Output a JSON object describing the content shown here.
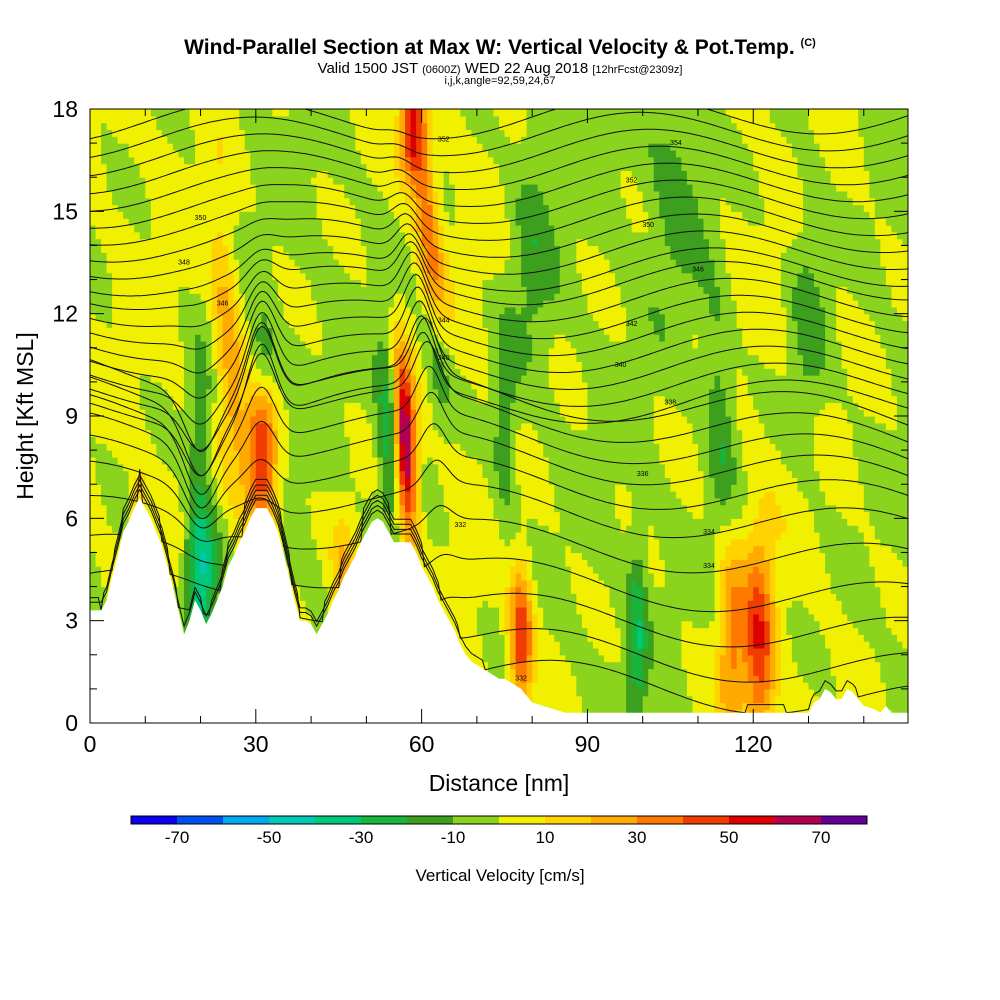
{
  "header": {
    "title": "Wind-Parallel Section at Max W: Vertical Velocity & Pot.Temp.",
    "title_mark": "(C)",
    "valid_prefix": "Valid 1500 JST",
    "valid_utc": "(0600Z)",
    "valid_date": "WED 22 Aug 2018",
    "forecast": "[12hrFcst@2309z]",
    "indices": "i,j,k,angle=92,59,24,67"
  },
  "chart_data": {
    "type": "heatmap",
    "xlabel": "Distance [nm]",
    "ylabel": "Height [Kft MSL]",
    "xlim": [
      0,
      148
    ],
    "ylim": [
      0,
      18
    ],
    "x_ticks": [
      "0",
      "30",
      "60",
      "90",
      "120"
    ],
    "y_ticks": [
      "0",
      "3",
      "6",
      "9",
      "12",
      "15",
      "18"
    ],
    "colorbar": {
      "label": "Vertical Velocity [cm/s]",
      "tick_labels": [
        "-70",
        "-50",
        "-30",
        "-10",
        "10",
        "30",
        "50",
        "70"
      ],
      "bins": [
        -80,
        -70,
        -60,
        -50,
        -40,
        -30,
        -20,
        -10,
        0,
        10,
        20,
        30,
        40,
        50,
        60,
        70,
        80
      ],
      "colors": [
        "#0a00f0",
        "#0050f0",
        "#00a8f0",
        "#00c8b4",
        "#00c87a",
        "#18b43c",
        "#3ca01e",
        "#8ad41e",
        "#f0f000",
        "#ffd200",
        "#ffaa00",
        "#ff7800",
        "#f03c00",
        "#dc0000",
        "#b40050",
        "#640096"
      ]
    },
    "terrain_nm_kft": [
      [
        0,
        3.3
      ],
      [
        2,
        3.3
      ],
      [
        3,
        3.6
      ],
      [
        4,
        4.3
      ],
      [
        5,
        4.9
      ],
      [
        6,
        5.6
      ],
      [
        7,
        5.9
      ],
      [
        8,
        6.3
      ],
      [
        9,
        6.6
      ],
      [
        10,
        6.3
      ],
      [
        11,
        6.0
      ],
      [
        12,
        5.6
      ],
      [
        13,
        5.2
      ],
      [
        14,
        4.6
      ],
      [
        15,
        4.0
      ],
      [
        16,
        3.3
      ],
      [
        17,
        2.6
      ],
      [
        18,
        3.0
      ],
      [
        19,
        3.6
      ],
      [
        20,
        3.3
      ],
      [
        21,
        2.9
      ],
      [
        22,
        3.2
      ],
      [
        23,
        3.6
      ],
      [
        24,
        4.0
      ],
      [
        25,
        4.6
      ],
      [
        26,
        4.9
      ],
      [
        27,
        5.3
      ],
      [
        28,
        5.6
      ],
      [
        29,
        6.0
      ],
      [
        30,
        6.3
      ],
      [
        31,
        6.3
      ],
      [
        32,
        6.3
      ],
      [
        33,
        6.0
      ],
      [
        34,
        5.6
      ],
      [
        35,
        5.0
      ],
      [
        36,
        4.3
      ],
      [
        37,
        3.6
      ],
      [
        38,
        3.0
      ],
      [
        39,
        3.0
      ],
      [
        40,
        2.9
      ],
      [
        41,
        2.6
      ],
      [
        42,
        2.9
      ],
      [
        43,
        3.2
      ],
      [
        44,
        3.6
      ],
      [
        45,
        3.9
      ],
      [
        46,
        4.3
      ],
      [
        47,
        4.6
      ],
      [
        48,
        4.9
      ],
      [
        49,
        5.3
      ],
      [
        50,
        5.6
      ],
      [
        51,
        5.9
      ],
      [
        52,
        6.0
      ],
      [
        53,
        5.9
      ],
      [
        54,
        5.6
      ],
      [
        55,
        5.3
      ],
      [
        56,
        5.3
      ],
      [
        57,
        5.3
      ],
      [
        58,
        5.3
      ],
      [
        59,
        5.0
      ],
      [
        60,
        4.6
      ],
      [
        61,
        4.3
      ],
      [
        62,
        4.0
      ],
      [
        63,
        3.6
      ],
      [
        64,
        3.3
      ],
      [
        65,
        3.0
      ],
      [
        66,
        2.7
      ],
      [
        67,
        2.3
      ],
      [
        68,
        2.0
      ],
      [
        69,
        1.8
      ],
      [
        70,
        1.7
      ],
      [
        71,
        1.6
      ],
      [
        72,
        1.5
      ],
      [
        73,
        1.4
      ],
      [
        74,
        1.3
      ],
      [
        75,
        1.3
      ],
      [
        76,
        1.2
      ],
      [
        77,
        1.1
      ],
      [
        78,
        1.0
      ],
      [
        79,
        0.8
      ],
      [
        80,
        0.6
      ],
      [
        82,
        0.5
      ],
      [
        84,
        0.4
      ],
      [
        86,
        0.3
      ],
      [
        88,
        0.3
      ],
      [
        90,
        0.3
      ],
      [
        100,
        0.3
      ],
      [
        110,
        0.3
      ],
      [
        130,
        0.3
      ],
      [
        131,
        0.6
      ],
      [
        132,
        0.7
      ],
      [
        133,
        1.0
      ],
      [
        134,
        0.9
      ],
      [
        135,
        0.7
      ],
      [
        136,
        0.7
      ],
      [
        137,
        1.0
      ],
      [
        138,
        0.9
      ],
      [
        139,
        0.7
      ],
      [
        140,
        0.5
      ],
      [
        142,
        0.4
      ],
      [
        143,
        0.3
      ],
      [
        144,
        0.5
      ],
      [
        145,
        0.3
      ],
      [
        148,
        0.3
      ]
    ],
    "vertical_velocity_features": [
      {
        "x": 57,
        "y": 8.2,
        "w_max": 75,
        "x_spread": 1.3,
        "y_spread": 1.8,
        "tilt": -0.28
      },
      {
        "x": 31,
        "y": 7.7,
        "w_max": 55,
        "x_spread": 2.0,
        "y_spread": 1.8,
        "tilt": -0.15
      },
      {
        "x": 78,
        "y": 2.5,
        "w_max": 50,
        "x_spread": 1.5,
        "y_spread": 1.4,
        "tilt": 0
      },
      {
        "x": 121,
        "y": 2.3,
        "w_max": 45,
        "x_spread": 2.0,
        "y_spread": 2.2,
        "tilt": 0
      },
      {
        "x": 116,
        "y": 2.6,
        "w_max": 30,
        "x_spread": 1.6,
        "y_spread": 2.2,
        "tilt": 0
      },
      {
        "x": 61,
        "y": 14.8,
        "w_max": 35,
        "x_spread": 1.5,
        "y_spread": 3.5,
        "tilt": -0.55
      },
      {
        "x": 25,
        "y": 11,
        "w_max": 25,
        "x_spread": 1.8,
        "y_spread": 3.0,
        "tilt": -0.35
      },
      {
        "x": 58,
        "y": 17.2,
        "w_max": 40,
        "x_spread": 1.5,
        "y_spread": 1.0,
        "tilt": 0
      },
      {
        "x": 9,
        "y": 5.5,
        "w_max": 25,
        "x_spread": 1.0,
        "y_spread": 1.2,
        "tilt": 0
      },
      {
        "x": 46,
        "y": 4.0,
        "w_max": 22,
        "x_spread": 1.8,
        "y_spread": 1.5,
        "tilt": 0
      },
      {
        "x": 20,
        "y": 4.5,
        "w_max": -45,
        "x_spread": 2.0,
        "y_spread": 1.6,
        "tilt": 0
      },
      {
        "x": 54,
        "y": 8.5,
        "w_max": -30,
        "x_spread": 1.5,
        "y_spread": 2.0,
        "tilt": -0.2
      },
      {
        "x": 63,
        "y": 10.5,
        "w_max": -30,
        "x_spread": 1.6,
        "y_spread": 1.5,
        "tilt": -0.6
      },
      {
        "x": 31,
        "y": 10.5,
        "w_max": -25,
        "x_spread": 1.8,
        "y_spread": 1.0,
        "tilt": 0
      },
      {
        "x": 75,
        "y": 8.5,
        "w_max": -20,
        "x_spread": 1.5,
        "y_spread": 2.0,
        "tilt": 0
      },
      {
        "x": 99,
        "y": 2.5,
        "w_max": -25,
        "x_spread": 1.2,
        "y_spread": 2.0,
        "tilt": 0
      },
      {
        "x": 114,
        "y": 9.0,
        "w_max": -20,
        "x_spread": 2.0,
        "y_spread": 2.5,
        "tilt": -0.3
      },
      {
        "x": 20,
        "y": 9.0,
        "w_max": -20,
        "x_spread": 1.5,
        "y_spread": 1.5,
        "tilt": 0
      },
      {
        "x": 106,
        "y": 15.5,
        "w_max": -15,
        "x_spread": 3.5,
        "y_spread": 2.0,
        "tilt": 0
      },
      {
        "x": 130,
        "y": 12,
        "w_max": -15,
        "x_spread": 2.5,
        "y_spread": 3.0,
        "tilt": 0
      },
      {
        "x": 80,
        "y": 14,
        "w_max": -15,
        "x_spread": 3.0,
        "y_spread": 3.0,
        "tilt": 0
      }
    ],
    "isentrope_base_kft": [
      0.6,
      1.5,
      2.5,
      3.5,
      4.6,
      5.6,
      6.4,
      7.1,
      7.7,
      8.3,
      8.9,
      9.5,
      10.0,
      10.5,
      11.0,
      11.5,
      12.0,
      12.5,
      13.0,
      13.4,
      13.9,
      14.4,
      14.9,
      15.4,
      15.9,
      16.4,
      16.9,
      17.4,
      17.9
    ],
    "isentrope_labels": [
      {
        "text": "332",
        "x": 78,
        "y": 1.3
      },
      {
        "text": "332",
        "x": 67,
        "y": 5.8
      },
      {
        "text": "334",
        "x": 112,
        "y": 4.6
      },
      {
        "text": "334",
        "x": 112,
        "y": 5.6
      },
      {
        "text": "336",
        "x": 100,
        "y": 7.3
      },
      {
        "text": "338",
        "x": 105,
        "y": 9.4
      },
      {
        "text": "340",
        "x": 64,
        "y": 10.7
      },
      {
        "text": "340",
        "x": 96,
        "y": 10.5
      },
      {
        "text": "342",
        "x": 98,
        "y": 11.7
      },
      {
        "text": "344",
        "x": 64,
        "y": 11.8
      },
      {
        "text": "346",
        "x": 110,
        "y": 13.3
      },
      {
        "text": "346",
        "x": 24,
        "y": 12.3
      },
      {
        "text": "348",
        "x": 17,
        "y": 13.5
      },
      {
        "text": "350",
        "x": 101,
        "y": 14.6
      },
      {
        "text": "350",
        "x": 20,
        "y": 14.8
      },
      {
        "text": "352",
        "x": 98,
        "y": 15.9
      },
      {
        "text": "352",
        "x": 64,
        "y": 17.1
      },
      {
        "text": "354",
        "x": 106,
        "y": 17.0
      }
    ]
  }
}
